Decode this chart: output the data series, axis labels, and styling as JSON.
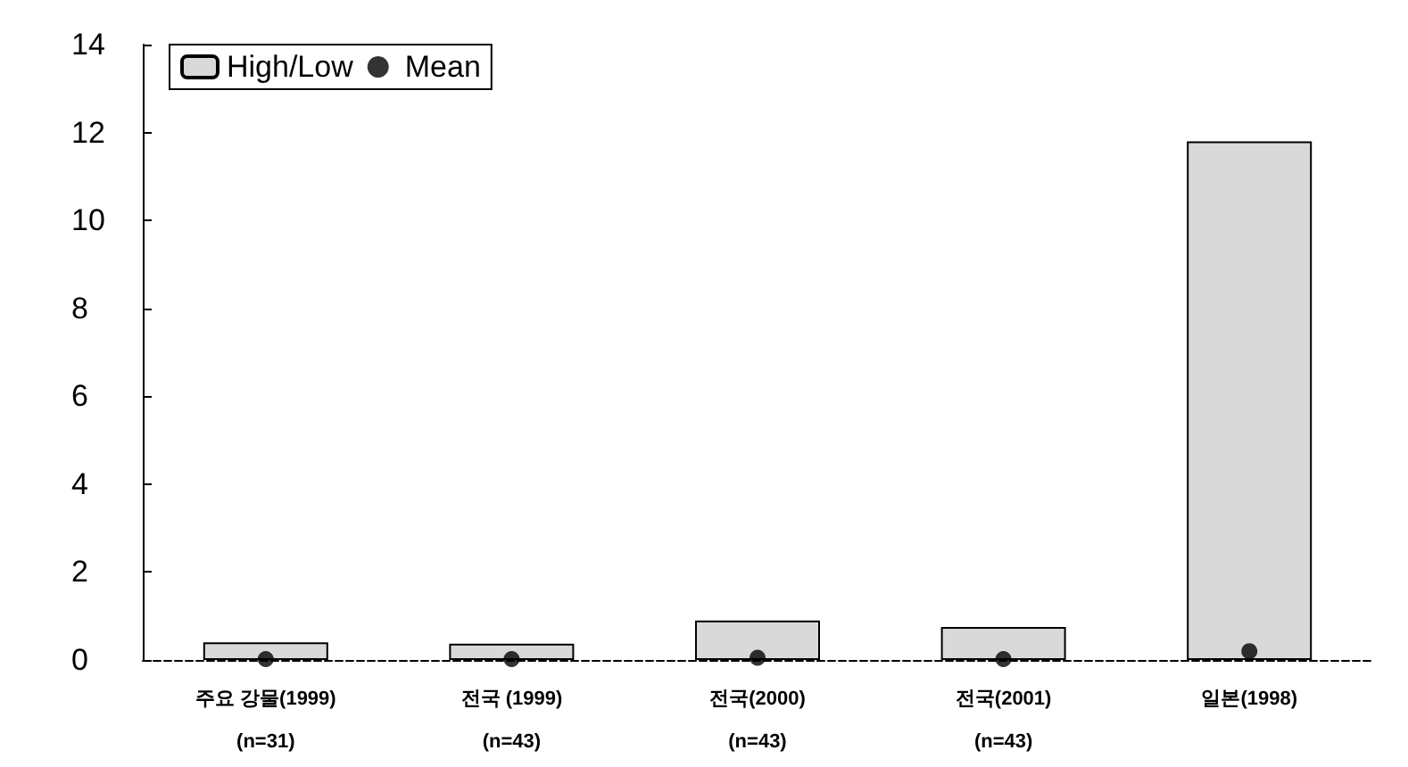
{
  "chart_data": {
    "type": "bar",
    "categories": [
      "주요 강물(1999)\n(n=31)",
      "전국 (1999)\n(n=43)",
      "전국(2000)\n(n=43)",
      "전국(2001)\n(n=43)",
      "일본(1998)"
    ],
    "series": [
      {
        "name": "High/Low",
        "type": "bar",
        "color": "#d9d9d9",
        "values": [
          0.4,
          0.37,
          0.9,
          0.75,
          11.8
        ]
      },
      {
        "name": "Mean",
        "type": "scatter",
        "color": "#000000",
        "values": [
          0.02,
          0.02,
          0.05,
          0.02,
          0.2
        ]
      }
    ],
    "ylim": [
      0,
      14
    ],
    "yticks": [
      0,
      2,
      4,
      6,
      8,
      10,
      12,
      14
    ],
    "grid": false,
    "legend": "top left"
  }
}
